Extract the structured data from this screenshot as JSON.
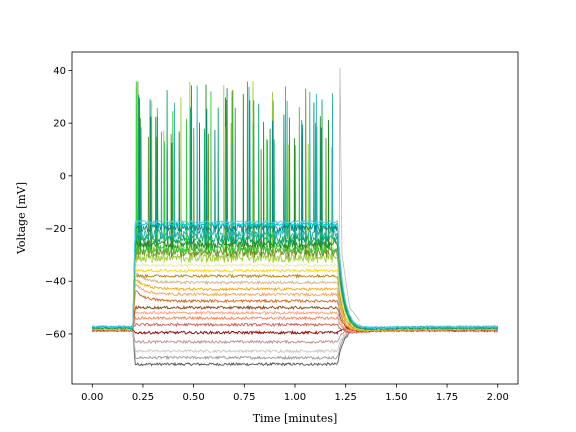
{
  "chart_data": {
    "type": "line",
    "title": "",
    "xlabel": "Time [minutes]",
    "ylabel": "Voltage [mV]",
    "xlim": [
      -0.1,
      2.1
    ],
    "ylim": [
      -79,
      47
    ],
    "xticks": [
      0.0,
      0.25,
      0.5,
      0.75,
      1.0,
      1.25,
      1.5,
      1.75,
      2.0
    ],
    "xtick_labels": [
      "0.00",
      "0.25",
      "0.50",
      "0.75",
      "1.00",
      "1.25",
      "1.50",
      "1.75",
      "2.00"
    ],
    "yticks": [
      40,
      20,
      0,
      -20,
      -40,
      -60
    ],
    "ytick_labels": [
      "40",
      "20",
      "0",
      "−20",
      "−40",
      "−60"
    ],
    "grid": false,
    "legend": "none",
    "stimulus": {
      "start": 0.2,
      "end": 1.21,
      "baseline": -58
    },
    "series": [
      {
        "color": "#555555",
        "plateau": -71.5,
        "spiking": false
      },
      {
        "color": "#999999",
        "plateau": -69,
        "spiking": false
      },
      {
        "color": "#c8c8c8",
        "plateau": -66.5,
        "spiking": false
      },
      {
        "color": "#bc8f8f",
        "plateau": -63,
        "spiking": false
      },
      {
        "color": "#8b0000",
        "plateau": -59.5,
        "spiking": false
      },
      {
        "color": "#cd5c5c",
        "plateau": -56.5,
        "spiking": false
      },
      {
        "color": "#ff7f50",
        "plateau": -54,
        "spiking": false
      },
      {
        "color": "#ffa07a",
        "plateau": -52,
        "spiking": false
      },
      {
        "color": "#8b4513",
        "plateau": -50,
        "spiking": false
      },
      {
        "color": "#d2691e",
        "plateau": -47.5,
        "spiking": false
      },
      {
        "color": "#f4a460",
        "plateau": -45,
        "spiking": false
      },
      {
        "color": "#ffa500",
        "plateau": -43,
        "spiking": false
      },
      {
        "color": "#d2b48c",
        "plateau": -40.5,
        "spiking": false
      },
      {
        "color": "#b8860b",
        "plateau": -38,
        "spiking": false
      },
      {
        "color": "#ffd700",
        "plateau": -36,
        "spiking": false
      },
      {
        "color": "#eee8aa",
        "plateau": -34,
        "spiking": false
      },
      {
        "color": "#9acd32",
        "plateau": -31,
        "spiking": true
      },
      {
        "color": "#6b8e23",
        "plateau": -29,
        "spiking": true
      },
      {
        "color": "#32cd32",
        "plateau": -27.5,
        "spiking": true
      },
      {
        "color": "#228b22",
        "plateau": -26,
        "spiking": true
      },
      {
        "color": "#00a86b",
        "plateau": -24,
        "spiking": true
      },
      {
        "color": "#20b2aa",
        "plateau": -22,
        "spiking": true
      },
      {
        "color": "#008b8b",
        "plateau": -19.5,
        "spiking": true
      },
      {
        "color": "#00ced1",
        "plateau": -18.5,
        "spiking": false
      },
      {
        "color": "#5fc8e8",
        "plateau": -17.5,
        "spiking": false
      }
    ]
  }
}
